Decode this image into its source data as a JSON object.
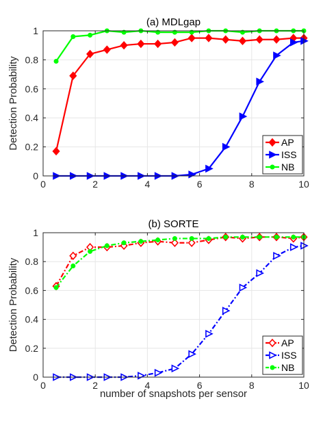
{
  "chart_data": [
    {
      "type": "line",
      "title": "(a) MDLgap",
      "xlabel": "",
      "ylabel": "Detection Probability",
      "xlim": [
        0,
        10
      ],
      "ylim": [
        0,
        1
      ],
      "xticks": [
        "0",
        "2",
        "4",
        "6",
        "8",
        "10"
      ],
      "yticks": [
        "0",
        "0.2",
        "0.4",
        "0.6",
        "0.8",
        "1"
      ],
      "grid": true,
      "legend_position": "bottom-right",
      "x": [
        0.5,
        1.15,
        1.8,
        2.45,
        3.1,
        3.75,
        4.4,
        5.05,
        5.7,
        6.35,
        7.0,
        7.65,
        8.3,
        8.95,
        9.6,
        10.0
      ],
      "series": [
        {
          "name": "AP",
          "color": "#ff0000",
          "marker": "diamond",
          "dash": "solid",
          "values": [
            0.17,
            0.69,
            0.84,
            0.87,
            0.9,
            0.91,
            0.91,
            0.92,
            0.95,
            0.95,
            0.94,
            0.93,
            0.94,
            0.94,
            0.95,
            0.95
          ]
        },
        {
          "name": "ISS",
          "color": "#0000ff",
          "marker": "triangle-right",
          "dash": "solid",
          "values": [
            0.0,
            0.0,
            0.0,
            0.0,
            0.0,
            0.0,
            0.0,
            0.0,
            0.01,
            0.05,
            0.2,
            0.41,
            0.65,
            0.83,
            0.92,
            0.93
          ]
        },
        {
          "name": "NB",
          "color": "#00ff00",
          "marker": "circle",
          "dash": "solid",
          "values": [
            0.79,
            0.96,
            0.97,
            1.0,
            0.99,
            1.0,
            0.99,
            0.99,
            0.99,
            1.0,
            1.0,
            0.99,
            1.0,
            1.0,
            1.0,
            1.0
          ]
        }
      ]
    },
    {
      "type": "line",
      "title": "(b) SORTE",
      "xlabel": "number of snapshots per sensor",
      "ylabel": "Detection Probability",
      "xlim": [
        0,
        10
      ],
      "ylim": [
        0,
        1
      ],
      "xticks": [
        "0",
        "2",
        "4",
        "6",
        "8",
        "10"
      ],
      "yticks": [
        "0",
        "0.2",
        "0.4",
        "0.6",
        "0.8",
        "1"
      ],
      "grid": true,
      "legend_position": "bottom-right",
      "x": [
        0.5,
        1.15,
        1.8,
        2.45,
        3.1,
        3.75,
        4.4,
        5.05,
        5.7,
        6.35,
        7.0,
        7.65,
        8.3,
        8.95,
        9.6,
        10.0
      ],
      "series": [
        {
          "name": "AP",
          "color": "#ff0000",
          "marker": "diamond-open",
          "dash": "dashdot",
          "values": [
            0.63,
            0.84,
            0.9,
            0.9,
            0.91,
            0.93,
            0.94,
            0.93,
            0.93,
            0.95,
            0.97,
            0.96,
            0.97,
            0.97,
            0.96,
            0.97
          ]
        },
        {
          "name": "ISS",
          "color": "#0000ff",
          "marker": "triangle-right-open",
          "dash": "dashdot",
          "values": [
            0.0,
            0.0,
            0.0,
            0.0,
            0.0,
            0.01,
            0.03,
            0.06,
            0.16,
            0.3,
            0.46,
            0.62,
            0.72,
            0.84,
            0.9,
            0.91
          ]
        },
        {
          "name": "NB",
          "color": "#00ff00",
          "marker": "circle",
          "dash": "dashdot",
          "values": [
            0.62,
            0.77,
            0.87,
            0.91,
            0.93,
            0.94,
            0.95,
            0.96,
            0.96,
            0.96,
            0.97,
            0.97,
            0.97,
            0.97,
            0.97,
            0.97
          ]
        }
      ]
    }
  ]
}
